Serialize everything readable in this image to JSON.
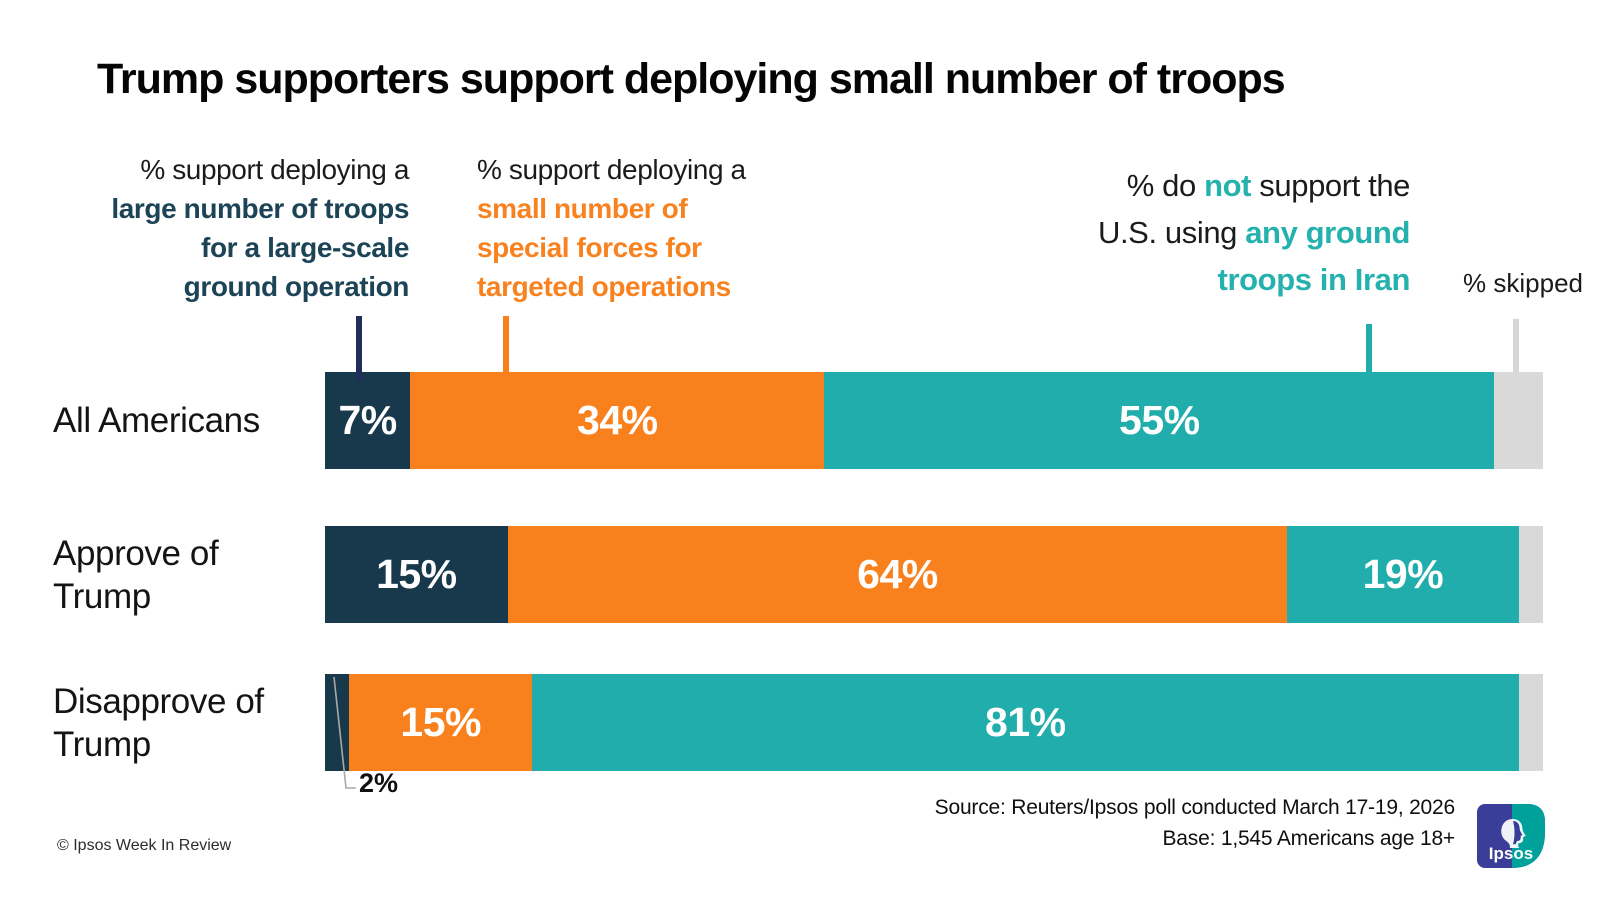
{
  "title": "Trump supporters support deploying small number of troops",
  "legend": {
    "large": {
      "prefix": "% support deploying a",
      "bold_lines": [
        "large number of troops",
        "for a large-scale",
        "ground operation"
      ]
    },
    "small": {
      "prefix": "% support deploying a",
      "bold_lines": [
        "small number of",
        "special forces for",
        "targeted operations"
      ]
    },
    "none": {
      "l1a": "% do ",
      "l1b": "not",
      "l1c": " support the",
      "l2a": "U.S. using ",
      "l2b": "any ground",
      "l3b": "troops in Iran"
    },
    "skipped": "% skipped"
  },
  "chart_data": {
    "type": "bar",
    "stacked": true,
    "orientation": "horizontal",
    "unit": "%",
    "xlim": [
      0,
      100
    ],
    "segment_order": [
      "large",
      "small",
      "none",
      "skipped"
    ],
    "segment_colors": {
      "large": "#17394b",
      "small": "#f8811e",
      "none": "#20adab",
      "skipped": "#d9d9d9"
    },
    "tick_colors": {
      "large": "#232d5c",
      "small": "#f8811e",
      "none": "#20adab",
      "skipped": "#d6d6d6"
    },
    "series_meaning": {
      "large": "% support deploying a large number of troops for a large-scale ground operation",
      "small": "% support deploying a small number of special forces for targeted operations",
      "none": "% do not support the U.S. using any ground troops in Iran",
      "skipped": "% skipped"
    },
    "rows": [
      {
        "label": "All Americans",
        "values": {
          "large": 7,
          "small": 34,
          "none": 55,
          "skipped": 4
        },
        "display": {
          "large": "7%",
          "small": "34%",
          "none": "55%",
          "skipped": ""
        }
      },
      {
        "label": "Approve of\nTrump",
        "values": {
          "large": 15,
          "small": 64,
          "none": 19,
          "skipped": 2
        },
        "display": {
          "large": "15%",
          "small": "64%",
          "none": "19%",
          "skipped": ""
        }
      },
      {
        "label": "Disapprove of\nTrump",
        "values": {
          "large": 2,
          "small": 15,
          "none": 81,
          "skipped": 2
        },
        "display": {
          "large": "",
          "small": "15%",
          "none": "81%",
          "skipped": ""
        },
        "callout": {
          "segment": "large",
          "text": "2%"
        }
      }
    ]
  },
  "callout": {
    "text": "2%"
  },
  "source": {
    "line1": "Source: Reuters/Ipsos poll conducted March 17-19, 2026",
    "line2": "Base: 1,545 Americans age 18+"
  },
  "footer": "© Ipsos Week In Review",
  "logo": {
    "text": "Ipsos",
    "indigo": "#3b3e98",
    "teal": "#00a19b"
  }
}
